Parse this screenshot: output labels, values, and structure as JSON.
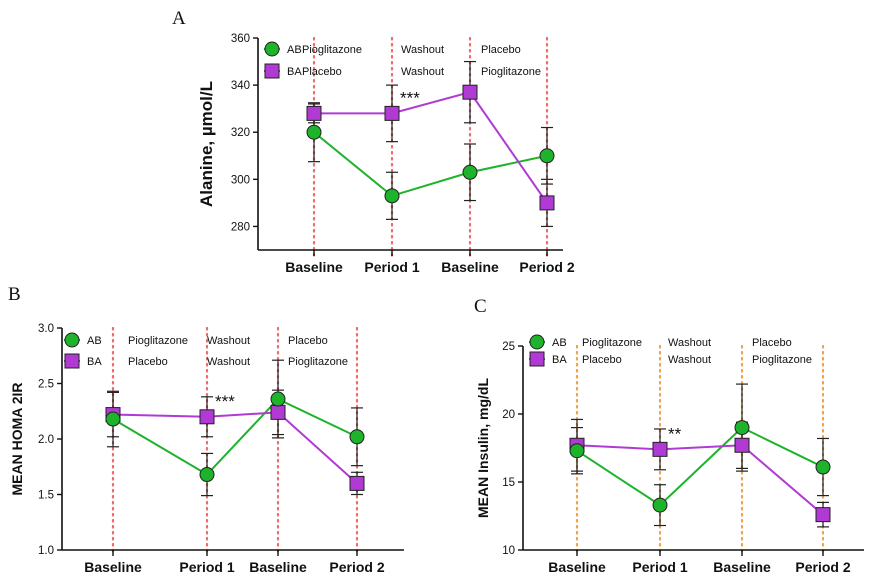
{
  "chart_data": [
    {
      "panel": "A",
      "type": "line",
      "ylabel": "Alanine, µmol/L",
      "categories": [
        "Baseline",
        "Period 1",
        "Baseline",
        "Period 2"
      ],
      "ylim": [
        270,
        360
      ],
      "yticks": [
        280,
        300,
        320,
        340,
        360
      ],
      "ytick_labels": [
        "280",
        "300",
        "320",
        "340",
        "360"
      ],
      "series": [
        {
          "name": "AB",
          "color": "#1db32b",
          "marker": "circle",
          "values": [
            320,
            293,
            303,
            310
          ],
          "err": [
            12.5,
            10,
            12,
            12
          ],
          "phases": [
            "Pioglitazone",
            "Washout",
            "Placebo"
          ]
        },
        {
          "name": "BA",
          "color": "#b03ad3",
          "marker": "square",
          "values": [
            328,
            328,
            337,
            290
          ],
          "err": [
            4,
            12,
            13,
            10
          ],
          "phases": [
            "Placebo",
            "Washout",
            "Pioglitazone"
          ]
        }
      ],
      "annotations": [
        {
          "text": "***",
          "category_index": 1
        }
      ],
      "vline_color": "#f26a6a"
    },
    {
      "panel": "B",
      "type": "line",
      "ylabel": "MEAN HOMA 2IR",
      "categories": [
        "Baseline",
        "Period 1",
        "Baseline",
        "Period 2"
      ],
      "ylim": [
        1.0,
        3.0
      ],
      "yticks": [
        1.0,
        1.5,
        2.0,
        2.5,
        3.0
      ],
      "ytick_labels": [
        "1.0",
        "1.5",
        "2.0",
        "2.5",
        "3.0"
      ],
      "series": [
        {
          "name": "AB",
          "color": "#1db32b",
          "marker": "circle",
          "values": [
            2.18,
            1.68,
            2.36,
            2.02
          ],
          "err": [
            0.25,
            0.19,
            0.35,
            0.26
          ],
          "phases": [
            "Pioglitazone",
            "Washout",
            "Placebo"
          ]
        },
        {
          "name": "BA",
          "color": "#b03ad3",
          "marker": "square",
          "values": [
            2.22,
            2.2,
            2.24,
            1.6
          ],
          "err": [
            0.2,
            0.18,
            0.2,
            0.1
          ],
          "phases": [
            "Placebo",
            "Washout",
            "Pioglitazone"
          ]
        }
      ],
      "annotations": [
        {
          "text": "***",
          "category_index": 1
        }
      ],
      "vline_color": "#f26a6a"
    },
    {
      "panel": "C",
      "type": "line",
      "ylabel": "MEAN Insulin, mg/dL",
      "categories": [
        "Baseline",
        "Period 1",
        "Baseline",
        "Period 2"
      ],
      "ylim": [
        10,
        25
      ],
      "yticks": [
        10,
        15,
        20,
        25
      ],
      "ytick_labels": [
        "10",
        "15",
        "20",
        "25"
      ],
      "series": [
        {
          "name": "AB",
          "color": "#1db32b",
          "marker": "circle",
          "values": [
            17.3,
            13.3,
            19.0,
            16.1
          ],
          "err": [
            1.7,
            1.5,
            3.2,
            2.1
          ],
          "phases": [
            "Pioglitazone",
            "Washout",
            "Placebo"
          ]
        },
        {
          "name": "BA",
          "color": "#b03ad3",
          "marker": "square",
          "values": [
            17.7,
            17.4,
            17.7,
            12.6
          ],
          "err": [
            1.9,
            1.5,
            1.7,
            0.9
          ],
          "phases": [
            "Placebo",
            "Washout",
            "Pioglitazone"
          ]
        }
      ],
      "annotations": [
        {
          "text": "**",
          "category_index": 1
        }
      ],
      "vline_color": "#f2a24a"
    }
  ]
}
